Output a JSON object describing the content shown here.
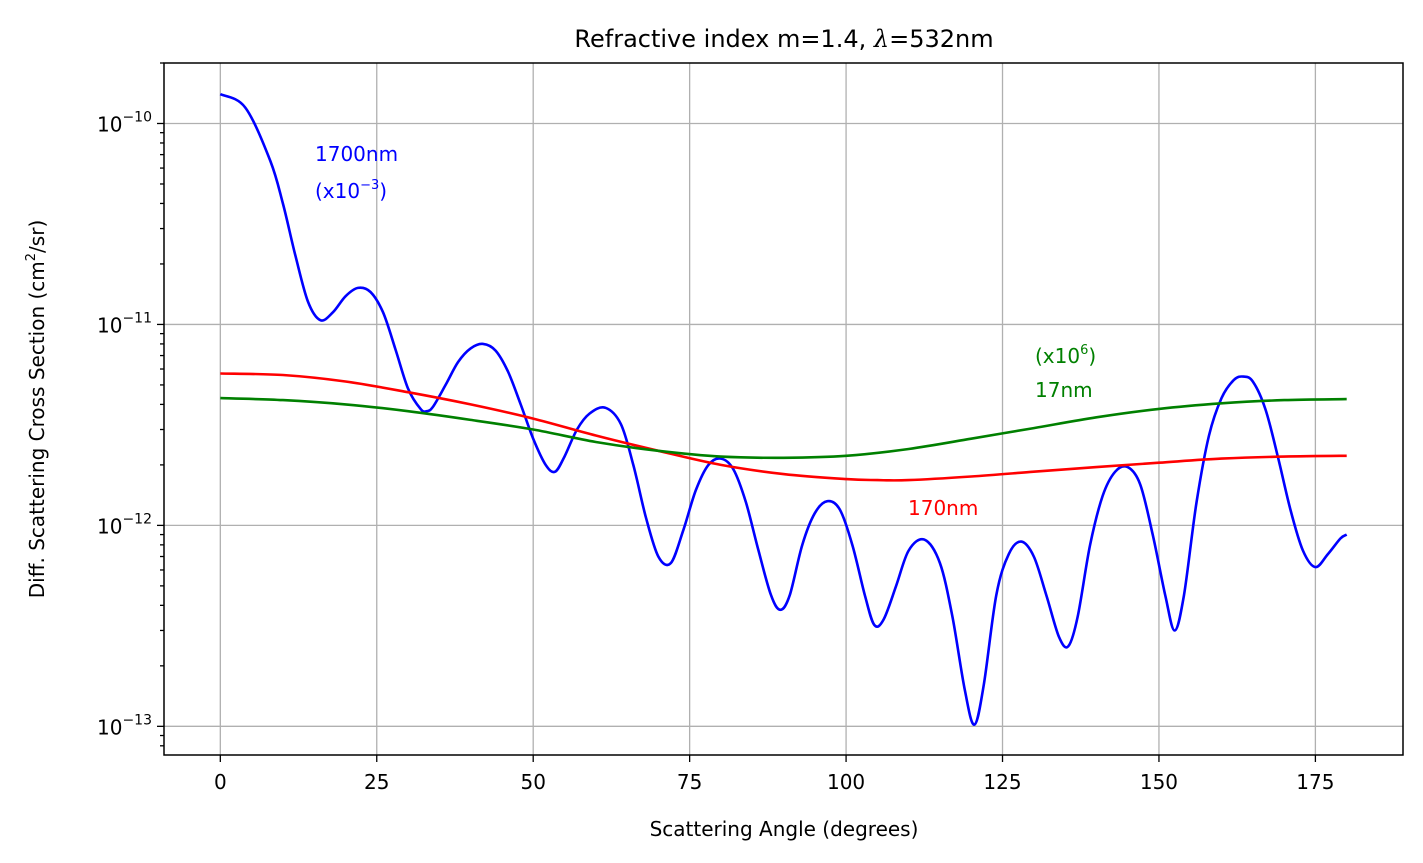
{
  "chart_data": {
    "type": "line",
    "title": "Refractive index m=1.4, λ=532nm",
    "title_parts": {
      "prefix": "Refractive index m=1.4, ",
      "symbol": "λ",
      "suffix": "=532nm"
    },
    "xlabel": "Scattering Angle (degrees)",
    "ylabel": "Diff. Scattering Cross Section (cm²/sr)",
    "ylabel_parts": {
      "prefix": "Diff. Scattering Cross Section (cm",
      "sup": "2",
      "suffix": "/sr)"
    },
    "xlim": [
      -9,
      189
    ],
    "ylim": [
      7.2e-14,
      2e-10
    ],
    "yscale": "log",
    "grid": true,
    "xticks": [
      0,
      25,
      50,
      75,
      100,
      125,
      150,
      175
    ],
    "yticks": [
      {
        "value": 1e-13,
        "base": "10",
        "exp": "−13"
      },
      {
        "value": 1e-12,
        "base": "10",
        "exp": "−12"
      },
      {
        "value": 1e-11,
        "base": "10",
        "exp": "−11"
      },
      {
        "value": 1e-10,
        "base": "10",
        "exp": "−10"
      }
    ],
    "series": [
      {
        "key": "large",
        "color": "#0000ff",
        "x": [
          0,
          4,
          8,
          10,
          12,
          14,
          16,
          18,
          20,
          22,
          24,
          26,
          28,
          30,
          32,
          33,
          34,
          36,
          38,
          40,
          42,
          44,
          46,
          48,
          50,
          52,
          53.5,
          55,
          57,
          59,
          61.5,
          64,
          66,
          68,
          70,
          72,
          74,
          76,
          78,
          80,
          82,
          84,
          86,
          88,
          89.5,
          91,
          93,
          95,
          97,
          99,
          101,
          103,
          104.5,
          106,
          108,
          110,
          112.5,
          115,
          117,
          119,
          120.5,
          122,
          124,
          126,
          128,
          130,
          132,
          134,
          135.5,
          137,
          139,
          141,
          143,
          145,
          147,
          149,
          151,
          152.5,
          154,
          156,
          158,
          160,
          162,
          163.5,
          165,
          167,
          169,
          171,
          173,
          175,
          177,
          179,
          180
        ],
        "y": [
          1.4e-10,
          1.2e-10,
          6.5e-11,
          4e-11,
          2.2e-11,
          1.3e-11,
          1.05e-11,
          1.15e-11,
          1.38e-11,
          1.52e-11,
          1.45e-11,
          1.15e-11,
          7.5e-12,
          4.8e-12,
          3.8e-12,
          3.7e-12,
          3.9e-12,
          5e-12,
          6.5e-12,
          7.6e-12,
          8e-12,
          7.4e-12,
          5.8e-12,
          4e-12,
          2.7e-12,
          2e-12,
          1.85e-12,
          2.2e-12,
          3e-12,
          3.6e-12,
          3.85e-12,
          3.2e-12,
          2e-12,
          1.1e-12,
          7e-13,
          6.5e-13,
          9.5e-13,
          1.5e-12,
          2e-12,
          2.15e-12,
          1.9e-12,
          1.3e-12,
          7.5e-13,
          4.5e-13,
          3.8e-13,
          4.5e-13,
          8e-13,
          1.15e-12,
          1.32e-12,
          1.2e-12,
          8e-13,
          4.5e-13,
          3.2e-13,
          3.4e-13,
          5e-13,
          7.5e-13,
          8.5e-13,
          6.5e-13,
          3.5e-13,
          1.5e-13,
          1.02e-13,
          1.6e-13,
          4.5e-13,
          7.2e-13,
          8.3e-13,
          7e-13,
          4.5e-13,
          2.8e-13,
          2.5e-13,
          3.5e-13,
          8e-13,
          1.4e-12,
          1.85e-12,
          1.95e-12,
          1.6e-12,
          9e-13,
          4.5e-13,
          3e-13,
          4.5e-13,
          1.3e-12,
          2.8e-12,
          4.3e-12,
          5.3e-12,
          5.5e-12,
          5.2e-12,
          3.8e-12,
          2.2e-12,
          1.2e-12,
          7.5e-13,
          6.2e-13,
          7.2e-13,
          8.6e-13,
          9e-13
        ]
      },
      {
        "key": "medium",
        "color": "#ff0000",
        "x": [
          0,
          10,
          20,
          30,
          40,
          50,
          60,
          70,
          80,
          90,
          100,
          105,
          110,
          120,
          130,
          140,
          150,
          160,
          170,
          180
        ],
        "y": [
          5.7e-12,
          5.6e-12,
          5.2e-12,
          4.6e-12,
          4e-12,
          3.4e-12,
          2.8e-12,
          2.35e-12,
          2e-12,
          1.8e-12,
          1.7e-12,
          1.68e-12,
          1.68e-12,
          1.75e-12,
          1.85e-12,
          1.95e-12,
          2.05e-12,
          2.15e-12,
          2.2e-12,
          2.22e-12
        ]
      },
      {
        "key": "small",
        "color": "#008000",
        "x": [
          0,
          10,
          20,
          30,
          40,
          50,
          60,
          70,
          80,
          90,
          100,
          110,
          120,
          130,
          140,
          150,
          160,
          170,
          180
        ],
        "y": [
          4.3e-12,
          4.2e-12,
          4e-12,
          3.7e-12,
          3.35e-12,
          3e-12,
          2.6e-12,
          2.35e-12,
          2.2e-12,
          2.17e-12,
          2.22e-12,
          2.4e-12,
          2.7e-12,
          3.05e-12,
          3.45e-12,
          3.8e-12,
          4.05e-12,
          4.2e-12,
          4.25e-12
        ]
      }
    ],
    "annotations": [
      {
        "name": "annotation-1700nm",
        "color": "#0000ff",
        "line1": "1700nm",
        "line2_prefix": "(x10",
        "line2_sup": "−3",
        "line2_suffix": ")",
        "order": "label-first"
      },
      {
        "name": "annotation-17nm",
        "color": "#008000",
        "line1_prefix": "(x10",
        "line1_sup": "6",
        "line1_suffix": ")",
        "line2": "17nm",
        "order": "factor-first"
      },
      {
        "name": "annotation-170nm",
        "color": "#ff0000",
        "line1": "170nm"
      }
    ]
  }
}
